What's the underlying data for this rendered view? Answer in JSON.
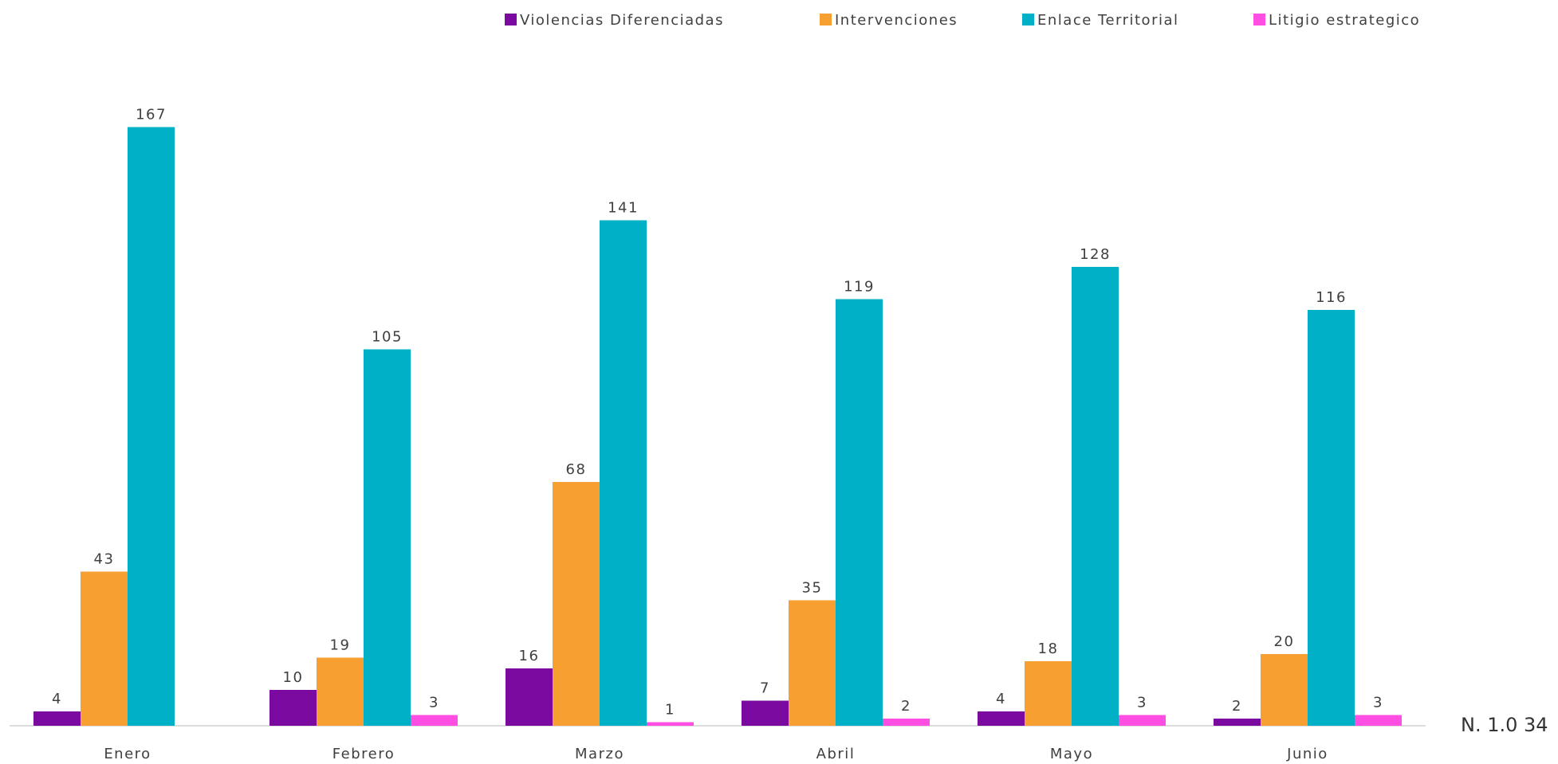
{
  "chart_data": {
    "type": "bar",
    "categories": [
      "Enero",
      "Febrero",
      "Marzo",
      "Abril",
      "Mayo",
      "Junio"
    ],
    "series": [
      {
        "name": "Violencias Diferenciadas",
        "color": "#7a0aa0",
        "values": [
          4,
          10,
          16,
          7,
          4,
          2
        ]
      },
      {
        "name": "Intervenciones",
        "color": "#f7a031",
        "values": [
          43,
          19,
          68,
          35,
          18,
          20
        ]
      },
      {
        "name": "Enlace Territorial",
        "color": "#00b0c6",
        "values": [
          167,
          105,
          141,
          119,
          128,
          116
        ]
      },
      {
        "name": "Litigio estrategico",
        "color": "#ff4fe2",
        "values": [
          null,
          3,
          1,
          2,
          3,
          3
        ]
      }
    ],
    "annotation": "N. 1.0 34"
  }
}
